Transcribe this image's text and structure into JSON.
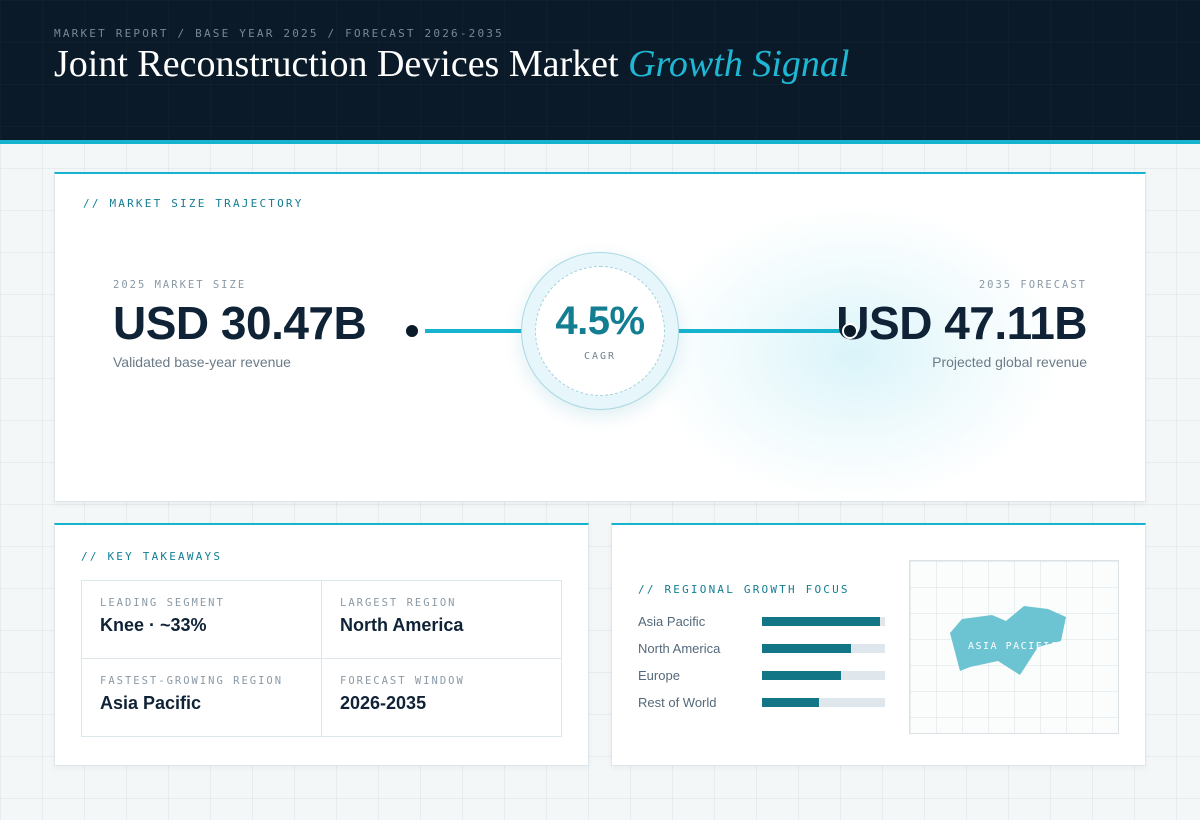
{
  "header": {
    "eyebrow": "MARKET REPORT / BASE YEAR 2025 / FORECAST 2026-2035",
    "title_main": "Joint Reconstruction Devices Market",
    "title_accent": "Growth Signal"
  },
  "trajectory": {
    "kicker": "// MARKET SIZE TRAJECTORY",
    "start": {
      "label": "2025 MARKET SIZE",
      "value": "USD 30.47B",
      "sub": "Validated base-year revenue"
    },
    "end": {
      "label": "2035 FORECAST",
      "value": "USD 47.11B",
      "sub": "Projected global revenue"
    },
    "cagr": {
      "value": "4.5%",
      "label": "CAGR"
    }
  },
  "takeaways": {
    "kicker": "// KEY TAKEAWAYS",
    "items": [
      {
        "label": "LEADING SEGMENT",
        "value": "Knee · ~33%"
      },
      {
        "label": "LARGEST REGION",
        "value": "North America"
      },
      {
        "label": "FASTEST-GROWING REGION",
        "value": "Asia Pacific"
      },
      {
        "label": "FORECAST WINDOW",
        "value": "2026-2035"
      }
    ]
  },
  "regional": {
    "kicker": "// REGIONAL GROWTH FOCUS",
    "bars": [
      {
        "label": "Asia Pacific",
        "level": 0.96
      },
      {
        "label": "North America",
        "level": 0.72
      },
      {
        "label": "Europe",
        "level": 0.64
      },
      {
        "label": "Rest of World",
        "level": 0.46
      }
    ],
    "map_label": "ASIA PACIFIC",
    "map_color": "#6cc3d2"
  },
  "colors": {
    "accent": "#16b3cf",
    "teal": "#127686",
    "navy": "#0a1a28"
  }
}
